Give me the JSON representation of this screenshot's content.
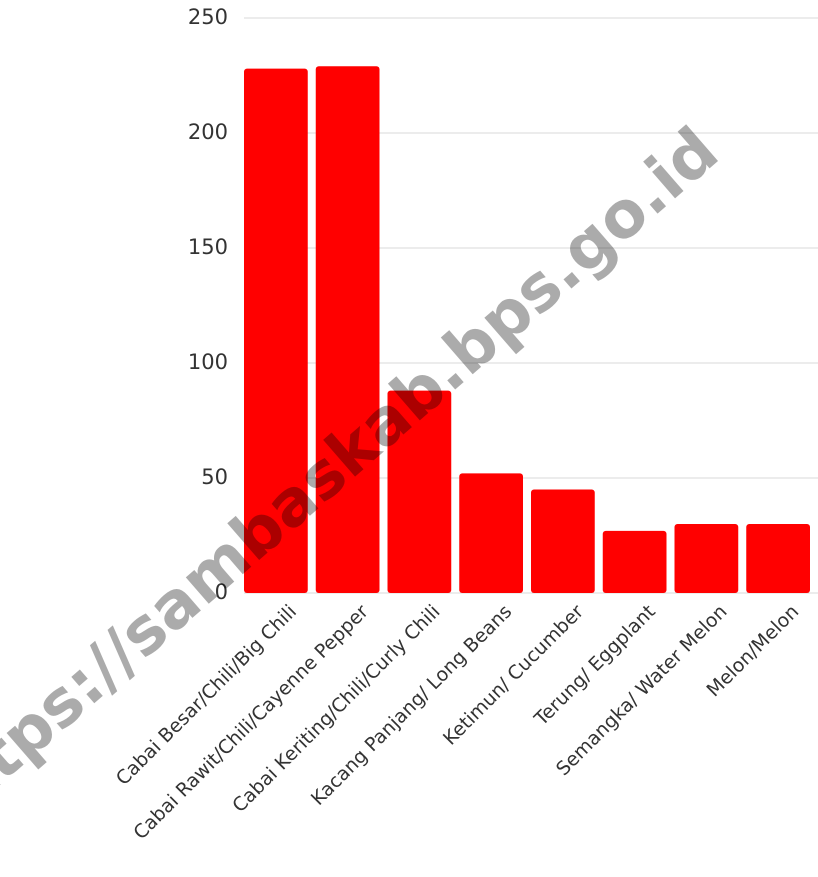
{
  "chart_data": {
    "type": "bar",
    "categories": [
      "Cabai Besar/Chili/Big Chili",
      "Cabai Rawit/Chili/Cayenne Pepper",
      "Cabai Keriting/Chili/Curly Chili",
      "Kacang Panjang/ Long Beans",
      "Ketimun/ Cucumber",
      "Terung/ Eggplant",
      "Semangka/ Water Melon",
      "Melon/Melon"
    ],
    "values": [
      228,
      229,
      88,
      52,
      45,
      27,
      30,
      30
    ],
    "ylim": [
      0,
      250
    ],
    "yticks": [
      0,
      50,
      100,
      150,
      200,
      250
    ],
    "grid": true,
    "bar_color": "#ff0000",
    "gridline_color": "#d9d9d9",
    "watermark": "https://sambaskab.bps.go.id"
  }
}
